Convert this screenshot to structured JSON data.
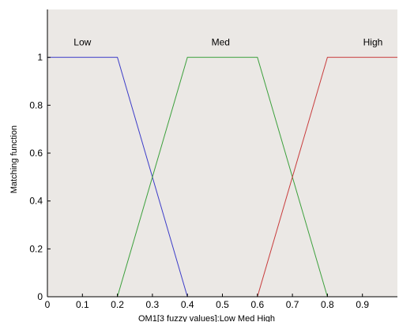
{
  "chart_data": {
    "type": "line",
    "xlabel": "OM1[3 fuzzy values]:Low Med High",
    "ylabel": "Matching function",
    "xlim": [
      0,
      1
    ],
    "ylim": [
      0,
      1.2
    ],
    "x_ticks": [
      "0",
      "0.1",
      "0.2",
      "0.3",
      "0.4",
      "0.5",
      "0.6",
      "0.7",
      "0.8",
      "0.9"
    ],
    "y_ticks": [
      "0",
      "0.2",
      "0.4",
      "0.6",
      "0.8",
      "1"
    ],
    "grid": false,
    "series": [
      {
        "name": "Low",
        "color": "#3c3cc8",
        "x": [
          0,
          0.2,
          0.4,
          1.0
        ],
        "y": [
          1,
          1,
          0,
          0
        ]
      },
      {
        "name": "Med",
        "color": "#3ca03c",
        "x": [
          0,
          0.2,
          0.4,
          0.6,
          0.8,
          1.0
        ],
        "y": [
          0,
          0,
          1,
          1,
          0,
          0
        ]
      },
      {
        "name": "High",
        "color": "#c83c3c",
        "x": [
          0,
          0.6,
          0.8,
          1.0
        ],
        "y": [
          0,
          0,
          1,
          1
        ]
      }
    ],
    "labels": [
      {
        "text": "Low",
        "x": 0.1,
        "y": 1.05
      },
      {
        "text": "Med",
        "x": 0.495,
        "y": 1.05
      },
      {
        "text": "High",
        "x": 0.93,
        "y": 1.05
      }
    ],
    "plot_background": "#ebe8e5"
  }
}
